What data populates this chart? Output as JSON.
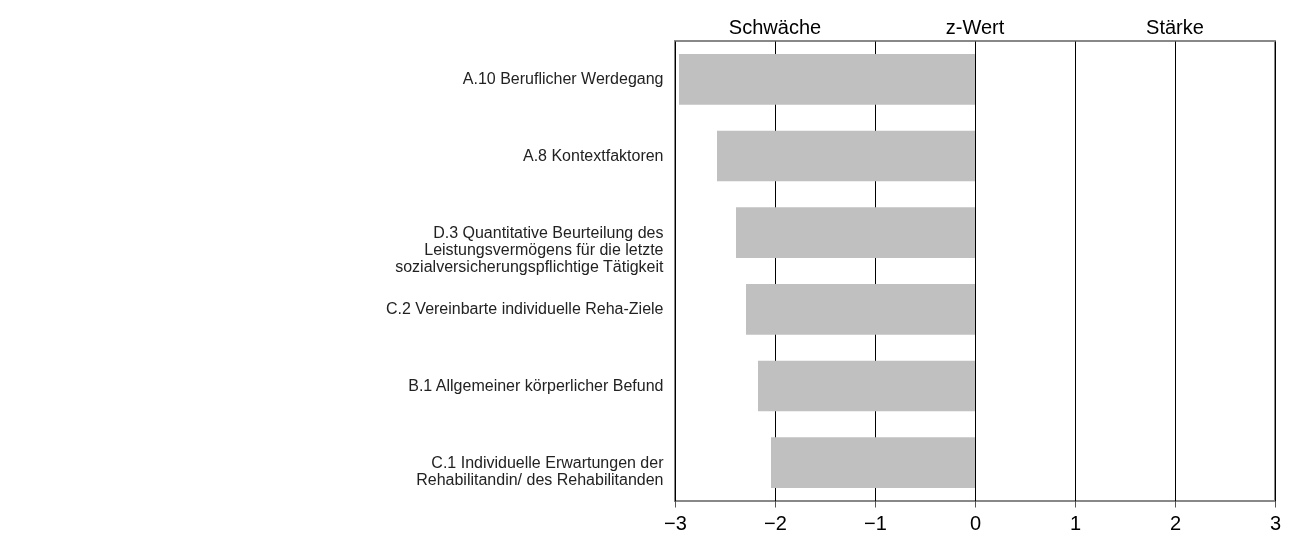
{
  "chart_data": {
    "type": "bar",
    "orientation": "horizontal",
    "categories": [
      "A.10 Beruflicher Werdegang",
      "A.8 Kontextfaktoren",
      "D.3 Quantitative Beurteilung des Leistungsvermögens für die letzte sozialversicherungspflichtige Tätigkeit",
      "C.2 Vereinbarte individuelle Reha-Ziele",
      "B.1 Allgemeiner körperlicher Befund",
      "C.1 Individuelle Erwartungen der Rehabilitandin/ des Rehabilitanden"
    ],
    "values": [
      -2.96,
      -2.58,
      -2.39,
      -2.29,
      -2.17,
      -2.04
    ],
    "color": "#c0c0c0",
    "xlim": [
      -3,
      3
    ],
    "xticks": [
      -3,
      -2,
      -1,
      0,
      1,
      2,
      3
    ],
    "grid": "x",
    "annotations": [
      "Schwäche",
      "z-Wert",
      "Stärke"
    ]
  }
}
